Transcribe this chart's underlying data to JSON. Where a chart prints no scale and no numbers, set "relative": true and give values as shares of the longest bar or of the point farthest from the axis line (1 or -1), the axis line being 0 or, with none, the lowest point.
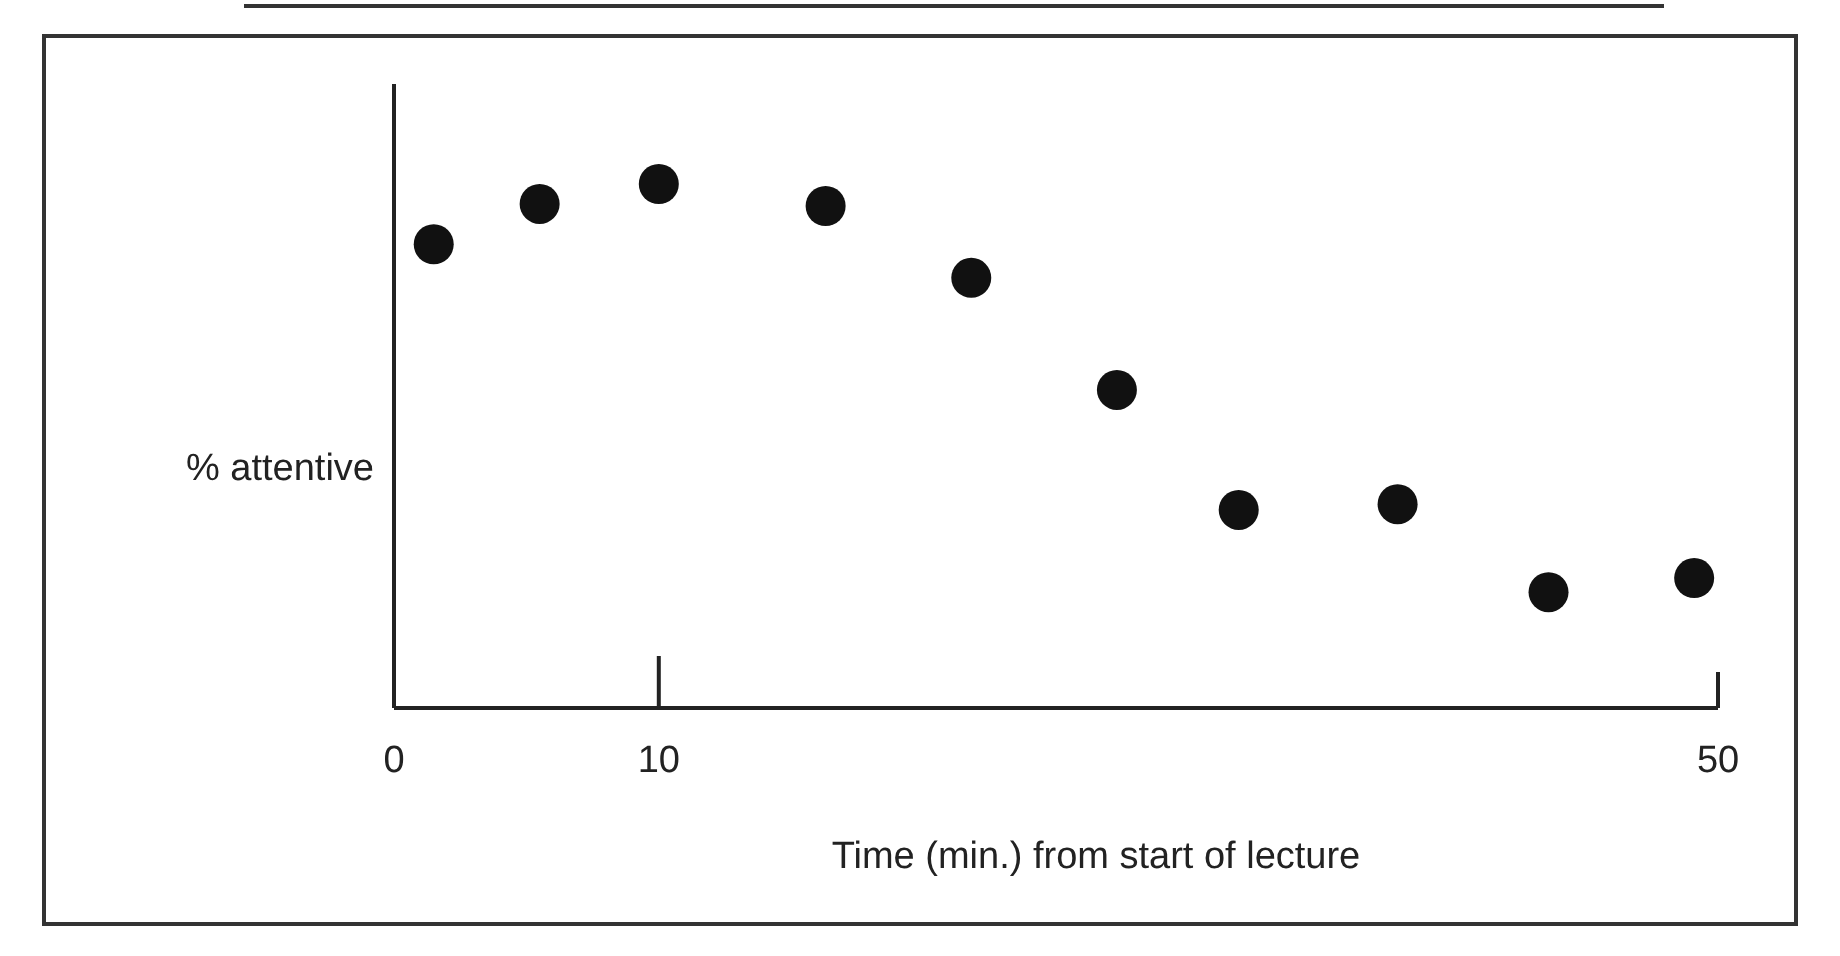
{
  "chart_data": {
    "type": "scatter",
    "relative": true,
    "xlabel": "Time (min.) from start of lecture",
    "ylabel": "% attentive",
    "xlim": [
      0,
      50
    ],
    "xticks": [
      0,
      10,
      50
    ],
    "marker": "circle",
    "x": [
      1.5,
      5.5,
      10,
      16.3,
      21.8,
      27.3,
      31.9,
      37.9,
      43.6,
      49.1
    ],
    "series": [
      {
        "color": "#111111",
        "values": [
          0.885,
          0.962,
          1,
          0.958,
          0.821,
          0.607,
          0.378,
          0.389,
          0.221,
          0.248
        ]
      }
    ]
  }
}
